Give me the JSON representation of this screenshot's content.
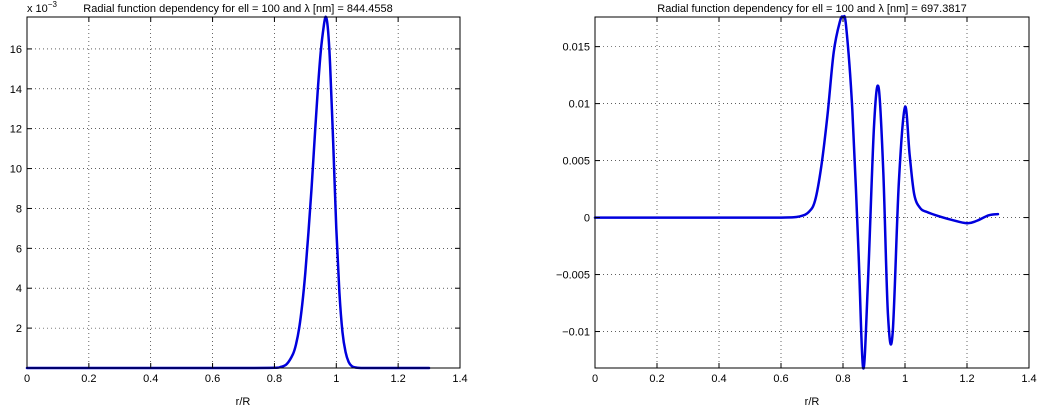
{
  "chart_data": [
    {
      "type": "line",
      "title": "Radial function dependency for ell = 100 and λ [nm] = 844.4558",
      "xlabel": "r/R",
      "ylabel": "",
      "xlim": [
        0,
        1.4
      ],
      "ylim": [
        0,
        17.6
      ],
      "xticks": [
        0,
        0.2,
        0.4,
        0.6,
        0.8,
        1,
        1.2,
        1.4
      ],
      "xtick_labels": [
        "0",
        "0.2",
        "0.4",
        "0.6",
        "0.8",
        "1",
        "1.2",
        "1.4"
      ],
      "yticks": [
        2,
        4,
        6,
        8,
        10,
        12,
        14,
        16
      ],
      "ytick_labels": [
        "2",
        "4",
        "6",
        "8",
        "10",
        "12",
        "14",
        "16"
      ],
      "y_multiplier": "x 10",
      "y_multiplier_exp": "−3",
      "grid": true,
      "line_color": "#0000dd",
      "series": [
        {
          "x": [
            0,
            0.2,
            0.4,
            0.6,
            0.7,
            0.8,
            0.82,
            0.84,
            0.86,
            0.87,
            0.88,
            0.89,
            0.9,
            0.91,
            0.92,
            0.93,
            0.94,
            0.95,
            0.96,
            0.965,
            0.97,
            0.975,
            0.98,
            0.99,
            1.0,
            1.01,
            1.02,
            1.03,
            1.04,
            1.05,
            1.06,
            1.08,
            1.1,
            1.2,
            1.3
          ],
          "y": [
            0,
            0,
            0,
            0,
            0,
            0.01,
            0.05,
            0.2,
            0.7,
            1.2,
            2.0,
            3.2,
            4.8,
            6.8,
            9.0,
            11.5,
            13.9,
            15.9,
            17.2,
            17.6,
            17.4,
            16.6,
            15.2,
            11.3,
            7.0,
            3.8,
            1.8,
            0.8,
            0.3,
            0.1,
            0.03,
            0,
            0,
            0,
            0
          ]
        }
      ]
    },
    {
      "type": "line",
      "title": "Radial function dependency for ell = 100 and λ [nm] = 697.3817",
      "xlabel": "r/R",
      "ylabel": "",
      "xlim": [
        0,
        1.4
      ],
      "ylim": [
        -0.0132,
        0.0176
      ],
      "xticks": [
        0,
        0.2,
        0.4,
        0.6,
        0.8,
        1,
        1.2,
        1.4
      ],
      "xtick_labels": [
        "0",
        "0.2",
        "0.4",
        "0.6",
        "0.8",
        "1",
        "1.2",
        "1.4"
      ],
      "yticks": [
        -0.01,
        -0.005,
        0,
        0.005,
        0.01,
        0.015
      ],
      "ytick_labels": [
        "−0.01",
        "−0.005",
        "0",
        "0.005",
        "0.01",
        "0.015"
      ],
      "grid": true,
      "line_color": "#0000dd",
      "series": [
        {
          "x": [
            0,
            0.2,
            0.4,
            0.6,
            0.66,
            0.69,
            0.71,
            0.73,
            0.75,
            0.77,
            0.79,
            0.8,
            0.81,
            0.83,
            0.85,
            0.865,
            0.88,
            0.9,
            0.915,
            0.93,
            0.945,
            0.96,
            0.98,
            1.0,
            1.015,
            1.03,
            1.05,
            1.07,
            1.1,
            1.15,
            1.2,
            1.23,
            1.27,
            1.3
          ],
          "y": [
            0,
            0,
            0,
            0,
            0.0001,
            0.0005,
            0.0015,
            0.0045,
            0.009,
            0.0145,
            0.0172,
            0.0176,
            0.0168,
            0.0095,
            -0.003,
            -0.0132,
            -0.006,
            0.008,
            0.0114,
            0.004,
            -0.0085,
            -0.0102,
            0.003,
            0.0097,
            0.0055,
            0.002,
            0.0008,
            0.0005,
            0.0002,
            -0.0002,
            -0.0005,
            -0.0003,
            0.0002,
            0.0003
          ]
        }
      ]
    }
  ]
}
